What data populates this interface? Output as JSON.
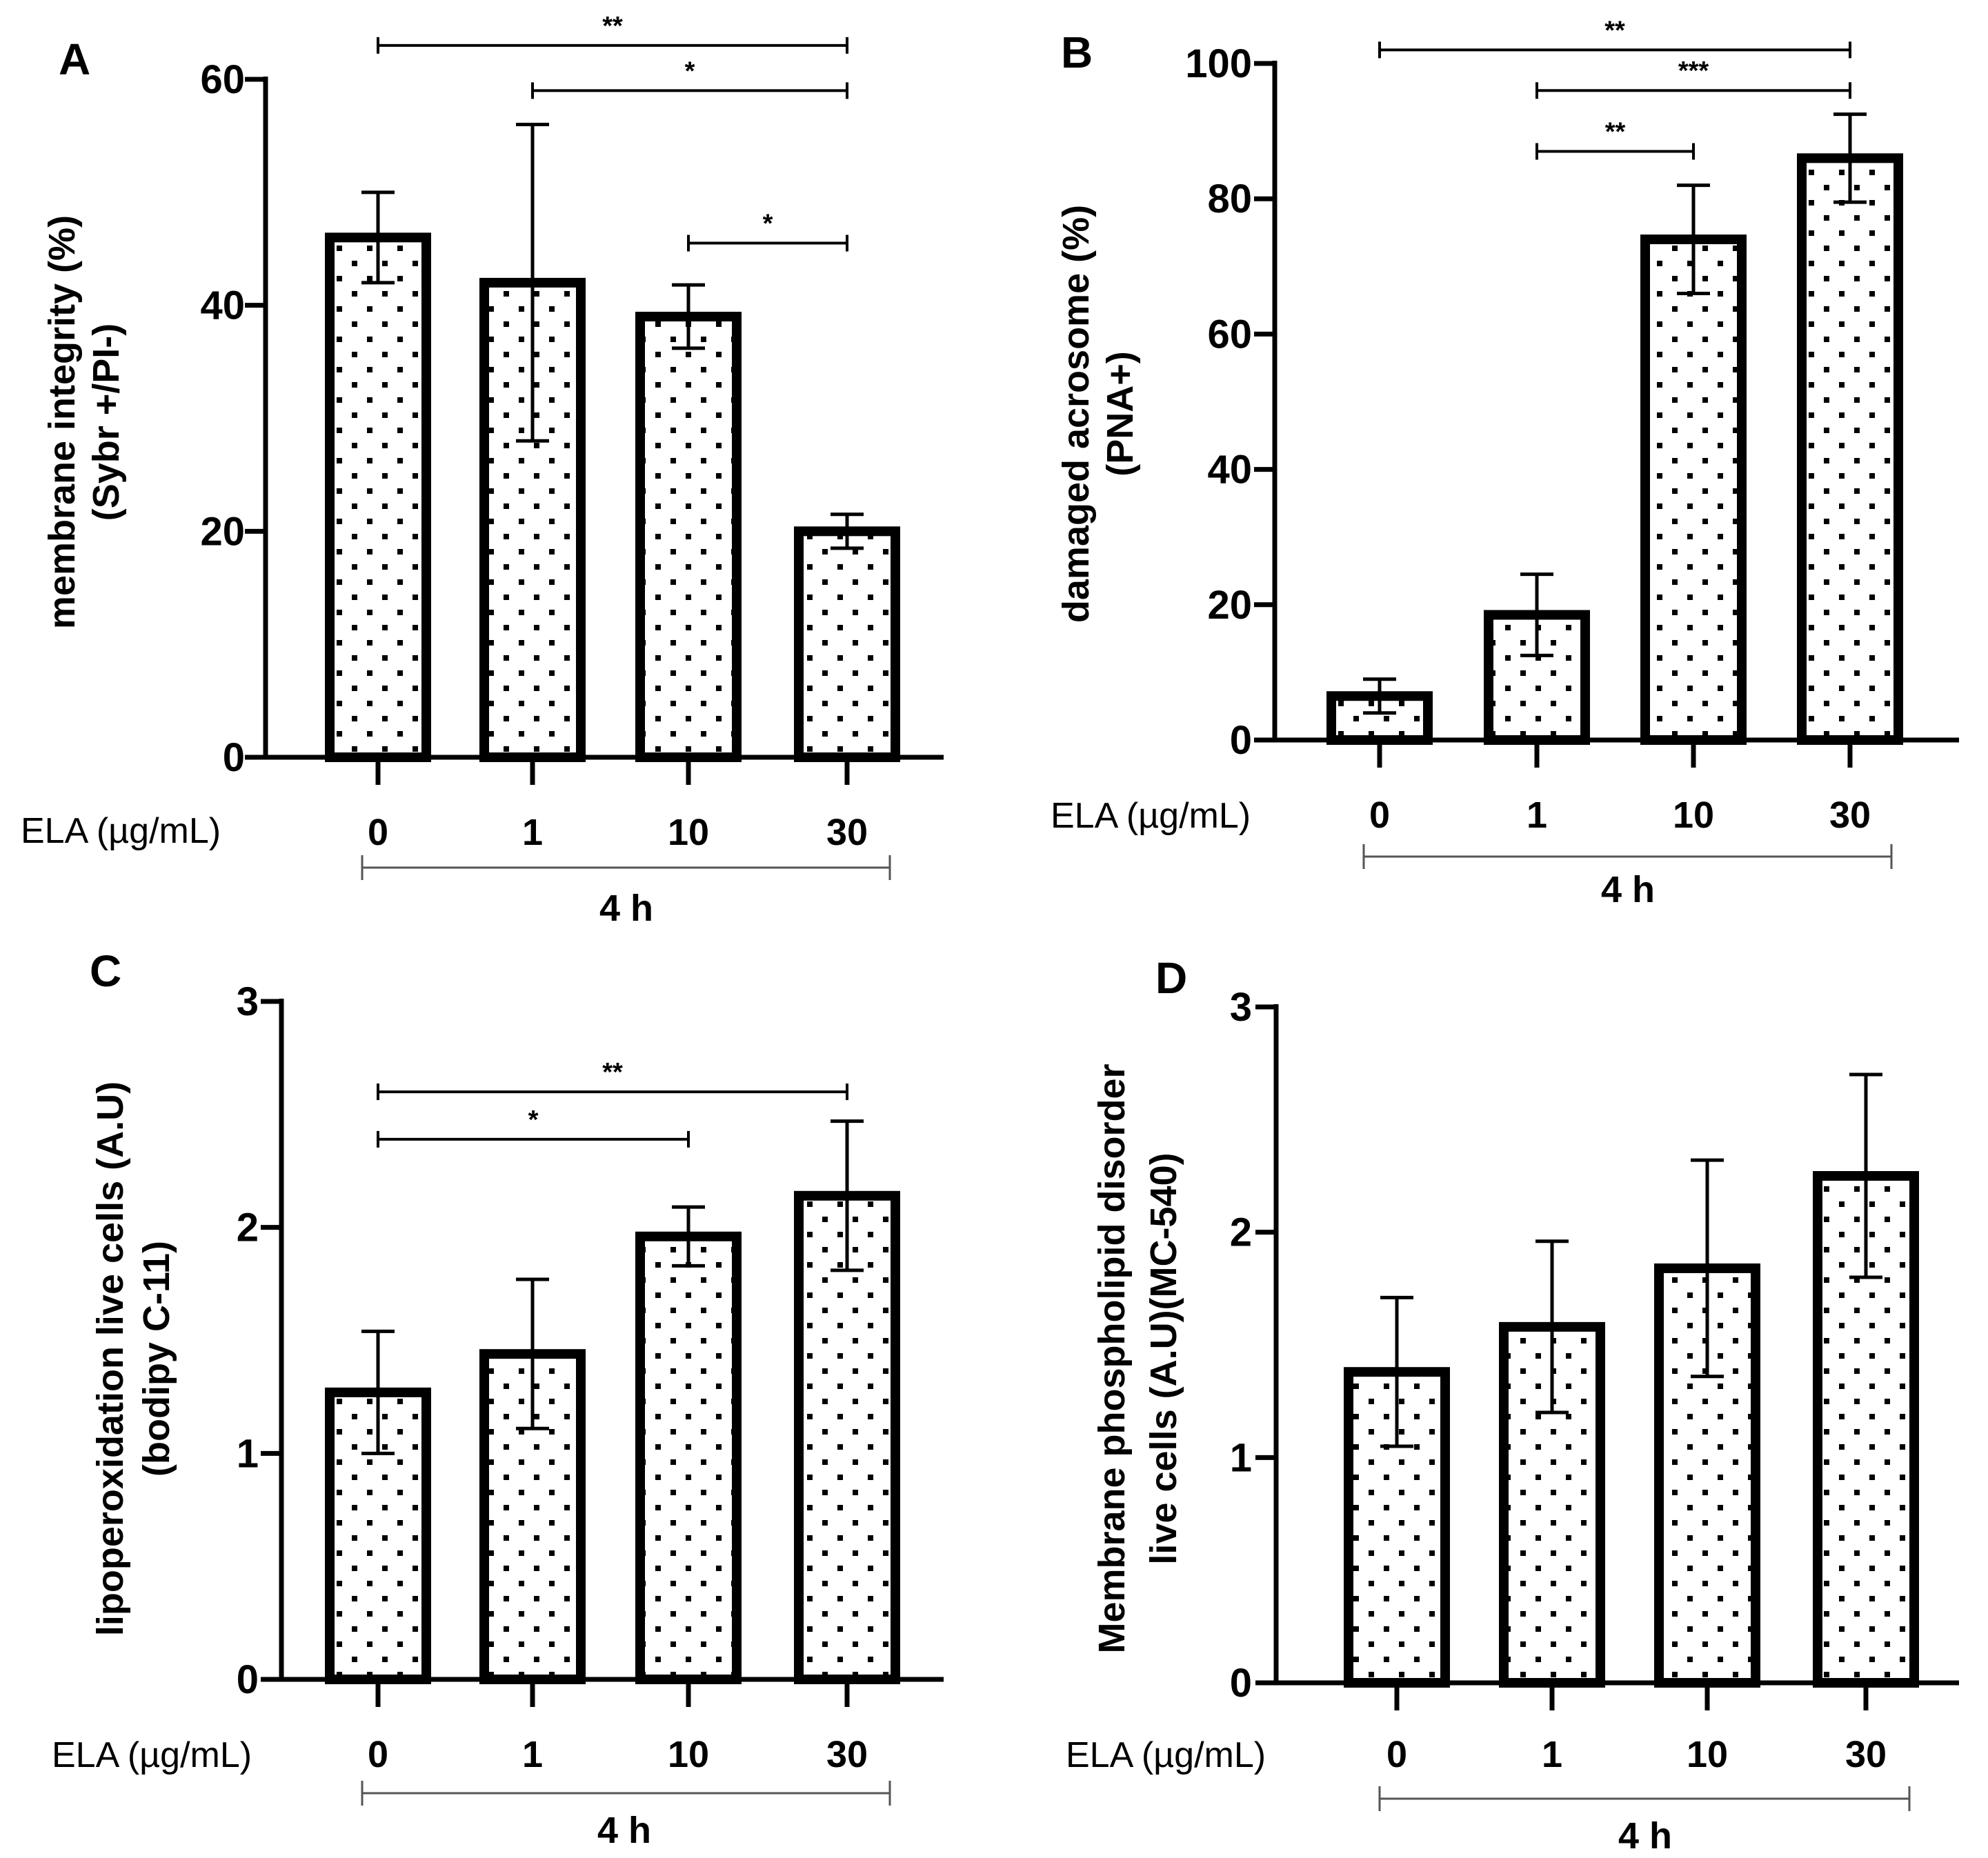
{
  "figure": {
    "colors": {
      "ink": "#000000",
      "bar_fill": "#ffffff",
      "dots": "#000000",
      "bracket": "#555555"
    }
  },
  "chart_data": [
    {
      "panel": "A",
      "type": "bar",
      "title": "",
      "ylabel_lines": [
        "membrane integrity (%)",
        "(Sybr +/PI-)"
      ],
      "xlabel": "ELA (µg/mL)",
      "group_label": "4 h",
      "categories": [
        "0",
        "1",
        "10",
        "30"
      ],
      "values": [
        46,
        42,
        39,
        20
      ],
      "errors": [
        4,
        14,
        2.8,
        1.5
      ],
      "ylim": [
        0,
        60
      ],
      "yticks": [
        0,
        20,
        40,
        60
      ],
      "significance": [
        {
          "from": 0,
          "to": 3,
          "label": "**",
          "y": 63
        },
        {
          "from": 1,
          "to": 3,
          "label": "*",
          "y": 59
        },
        {
          "from": 2,
          "to": 3,
          "label": "*",
          "y": 45.5
        }
      ]
    },
    {
      "panel": "B",
      "type": "bar",
      "title": "",
      "ylabel_lines": [
        "damaged acrosome (%)",
        "(PNA+)"
      ],
      "xlabel": "ELA (µg/mL)",
      "group_label": "4 h",
      "categories": [
        "0",
        "1",
        "10",
        "30"
      ],
      "values": [
        6.5,
        18.5,
        74,
        86
      ],
      "errors": [
        2.5,
        6,
        8,
        6.5
      ],
      "ylim": [
        0,
        100
      ],
      "yticks": [
        0,
        20,
        40,
        60,
        80,
        100
      ],
      "significance": [
        {
          "from": 0,
          "to": 3,
          "label": "**",
          "y": 102
        },
        {
          "from": 1,
          "to": 3,
          "label": "***",
          "y": 96
        },
        {
          "from": 1,
          "to": 2,
          "label": "**",
          "y": 87
        }
      ]
    },
    {
      "panel": "C",
      "type": "bar",
      "title": "",
      "ylabel_lines": [
        "lipoperoxidation live cells (A.U)",
        "(bodipy C-11)"
      ],
      "xlabel": "ELA (µg/mL)",
      "group_label": "4 h",
      "categories": [
        "0",
        "1",
        "10",
        "30"
      ],
      "values": [
        1.27,
        1.44,
        1.96,
        2.14
      ],
      "errors": [
        0.27,
        0.33,
        0.13,
        0.33
      ],
      "ylim": [
        0,
        3
      ],
      "yticks": [
        0,
        1,
        2,
        3
      ],
      "significance": [
        {
          "from": 0,
          "to": 3,
          "label": "**",
          "y": 2.6
        },
        {
          "from": 0,
          "to": 2,
          "label": "*",
          "y": 2.39
        }
      ]
    },
    {
      "panel": "D",
      "type": "bar",
      "title": "",
      "ylabel_lines": [
        "Membrane phospholipid disorder",
        "live cells (A.U)(MC-540)"
      ],
      "xlabel": "ELA (µg/mL)",
      "group_label": "4 h",
      "categories": [
        "0",
        "1",
        "10",
        "30"
      ],
      "values": [
        1.38,
        1.58,
        1.84,
        2.25
      ],
      "errors": [
        0.33,
        0.38,
        0.48,
        0.45
      ],
      "ylim": [
        0,
        3
      ],
      "yticks": [
        0,
        1,
        2,
        3
      ],
      "significance": []
    }
  ]
}
